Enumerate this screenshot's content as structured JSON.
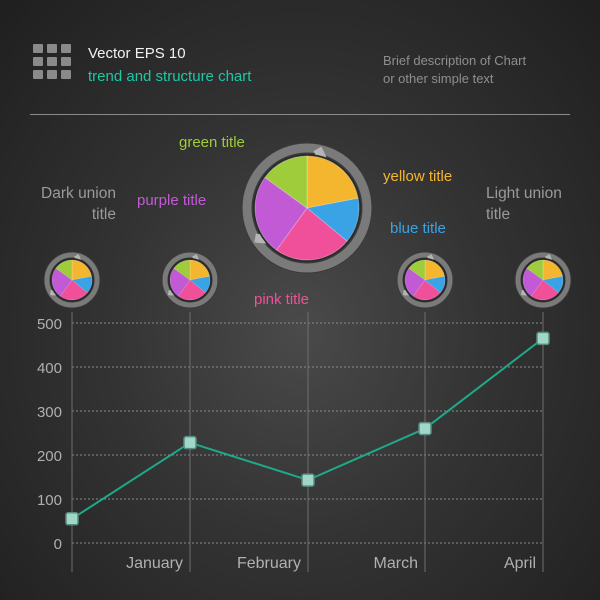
{
  "header": {
    "title": "Vector EPS 10",
    "subtitle": "trend and structure chart",
    "description_lines": [
      "Brief description of Chart",
      "or other simple text"
    ]
  },
  "labels": {
    "dark_union": [
      "Dark union",
      "title"
    ],
    "light_union": [
      "Light union",
      "title"
    ],
    "green": "green title",
    "purple": "purple title",
    "yellow": "yellow title",
    "blue": "blue title",
    "pink": "pink title"
  },
  "colors": {
    "green": "#9fcc3b",
    "yellow": "#f5b62f",
    "blue": "#3aa3e6",
    "pink": "#f0509a",
    "purple": "#c25ad6",
    "line": "#1ea98a",
    "marker": "#9fd8c8"
  },
  "chart_data": [
    {
      "type": "line",
      "x": [
        "",
        "January",
        "February",
        "March",
        "April"
      ],
      "categories": [
        "January",
        "February",
        "March",
        "April"
      ],
      "series": [
        {
          "values": [
            55,
            228,
            143,
            260,
            465
          ]
        }
      ],
      "y_ticks": [
        0,
        100,
        200,
        300,
        400,
        500
      ],
      "ylim": [
        0,
        500
      ],
      "grid": true
    },
    {
      "type": "pie",
      "slices": [
        {
          "color": "yellow",
          "value": 22
        },
        {
          "color": "blue",
          "value": 14
        },
        {
          "color": "pink",
          "value": 24
        },
        {
          "color": "purple",
          "value": 25
        },
        {
          "color": "green",
          "value": 15
        }
      ]
    }
  ]
}
